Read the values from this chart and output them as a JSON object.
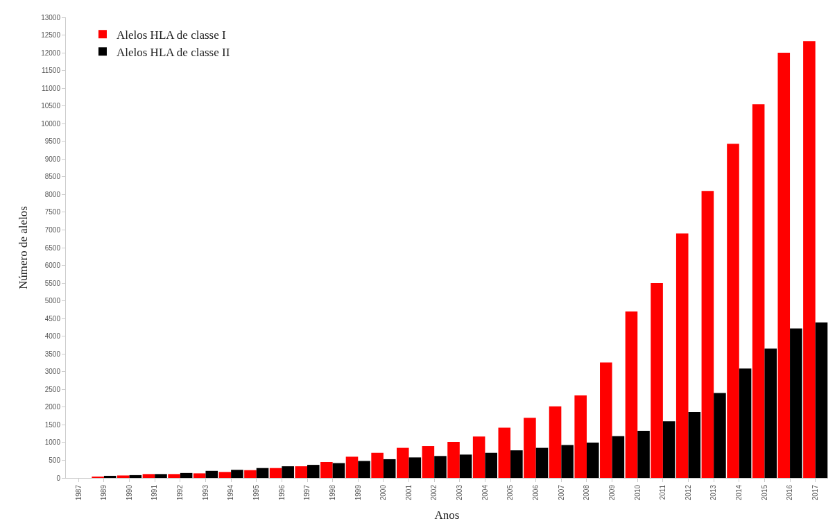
{
  "chart_data": {
    "type": "bar",
    "xlabel": "Anos",
    "ylabel": "Número de alelos",
    "categories": [
      "1987",
      "1989",
      "1990",
      "1991",
      "1992",
      "1993",
      "1994",
      "1995",
      "1996",
      "1997",
      "1998",
      "1999",
      "2000",
      "2001",
      "2002",
      "2003",
      "2004",
      "2005",
      "2006",
      "2007",
      "2008",
      "2009",
      "2010",
      "2011",
      "2012",
      "2013",
      "2014",
      "2015",
      "2016",
      "2017"
    ],
    "series": [
      {
        "name": "Alelos HLA de classe I",
        "color": "#ff0000",
        "values": [
          0,
          40,
          70,
          110,
          110,
          130,
          170,
          220,
          280,
          330,
          450,
          600,
          710,
          850,
          900,
          1020,
          1170,
          1420,
          1700,
          2020,
          2330,
          3260,
          4700,
          5500,
          6900,
          8100,
          9430,
          10550,
          12000,
          12330
        ]
      },
      {
        "name": "Alelos HLA de classe II",
        "color": "#000000",
        "values": [
          0,
          60,
          80,
          110,
          140,
          200,
          230,
          280,
          330,
          370,
          420,
          480,
          530,
          580,
          620,
          660,
          710,
          780,
          850,
          930,
          1000,
          1180,
          1330,
          1600,
          1860,
          2400,
          3090,
          3650,
          4220,
          4390
        ]
      }
    ],
    "ylim": [
      0,
      13000
    ],
    "yticks": [
      0,
      500,
      1000,
      1500,
      2000,
      2500,
      3000,
      3500,
      4000,
      4500,
      5000,
      5500,
      6000,
      6500,
      7000,
      7500,
      8000,
      8500,
      9000,
      9500,
      10000,
      10500,
      11000,
      11500,
      12000,
      12500,
      13000
    ],
    "legend": "top left"
  }
}
